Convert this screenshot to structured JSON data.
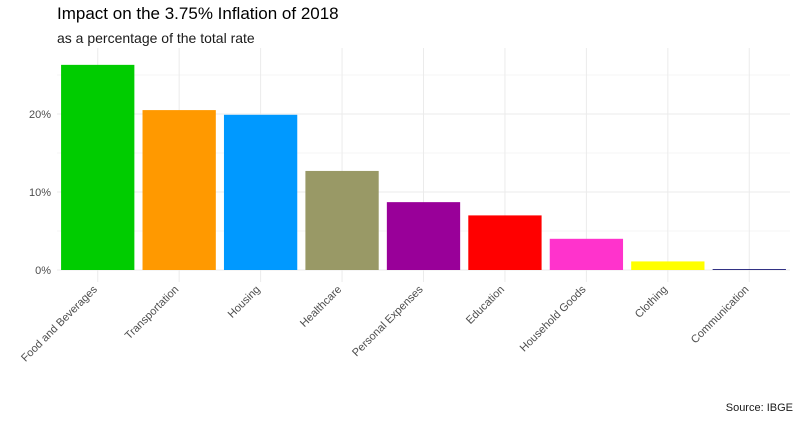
{
  "chart_data": {
    "type": "bar",
    "title": "Impact on the 3.75% Inflation of 2018",
    "subtitle": "as a percentage of the total rate",
    "caption": "Source: IBGE",
    "categories": [
      "Food and Beverages",
      "Transportation",
      "Housing",
      "Healthcare",
      "Personal Expenses",
      "Education",
      "Household Goods",
      "Clothing",
      "Communication"
    ],
    "values": [
      26.3,
      20.5,
      19.9,
      12.7,
      8.7,
      7.0,
      4.0,
      1.1,
      0.1
    ],
    "colors": [
      "#00CC00",
      "#FF9900",
      "#0099FF",
      "#999966",
      "#990099",
      "#FF0000",
      "#FF33CC",
      "#FFFF00",
      "#000066"
    ],
    "ylim": [
      0,
      27.5
    ],
    "yticks": [
      0,
      10,
      20
    ],
    "ytick_labels": [
      "0%",
      "10%",
      "20%"
    ],
    "grid": true,
    "legend": "none"
  }
}
